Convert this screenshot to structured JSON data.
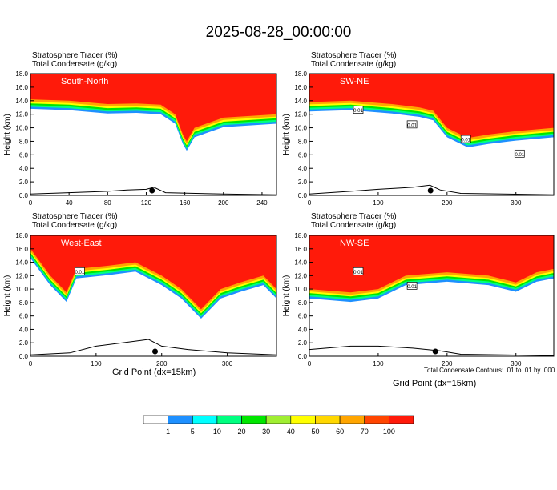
{
  "title": "2025-08-28_00:00:00",
  "subtitles": {
    "line1": "Stratosphere Tracer   (%)",
    "line2": "Total Condensate   (g/kg)"
  },
  "colors": {
    "white": "#ffffff",
    "red": "#ff1a0a"
  },
  "colorbar": {
    "ticks": [
      "1",
      "5",
      "10",
      "20",
      "30",
      "40",
      "50",
      "60",
      "70",
      "100"
    ],
    "colors": [
      "#ffffff",
      "#1e90ff",
      "#00ffff",
      "#00ff80",
      "#00e600",
      "#a0ee32",
      "#ffff00",
      "#ffd700",
      "#ffa500",
      "#ff4500",
      "#ff1a0a"
    ]
  },
  "footnote": "Total Condensate Contours: .01 to .01 by .000",
  "chart_data": [
    {
      "type": "heatmap",
      "title": "South-North",
      "ylabel": "Height (km)",
      "xlabel": "",
      "xlim": [
        0,
        255
      ],
      "ylim": [
        0,
        18
      ],
      "xticks": [
        "0",
        "40",
        "80",
        "120",
        "160",
        "200",
        "240"
      ],
      "xtick_values": [
        0,
        40,
        80,
        120,
        160,
        200,
        240
      ],
      "yticks": [
        "0.0",
        "2.0",
        "4.0",
        "6.0",
        "8.0",
        "10.0",
        "12.0",
        "14.0",
        "16.0",
        "18.0"
      ],
      "tropopause": [
        [
          0,
          14.2
        ],
        [
          40,
          14.0
        ],
        [
          80,
          13.5
        ],
        [
          110,
          13.6
        ],
        [
          135,
          13.4
        ],
        [
          150,
          12.0
        ],
        [
          158,
          9.0
        ],
        [
          162,
          8.0
        ],
        [
          170,
          10.0
        ],
        [
          200,
          11.5
        ],
        [
          255,
          12.0
        ]
      ],
      "terrain": [
        [
          0,
          0.2
        ],
        [
          40,
          0.4
        ],
        [
          80,
          0.6
        ],
        [
          100,
          0.8
        ],
        [
          120,
          0.9
        ],
        [
          128,
          1.2
        ],
        [
          140,
          0.4
        ],
        [
          200,
          0.2
        ],
        [
          255,
          0.1
        ]
      ],
      "marker_x": 126,
      "contour_labels": []
    },
    {
      "type": "heatmap",
      "title": "SW-NE",
      "ylabel": "Height (km)",
      "xlabel": "",
      "xlim": [
        0,
        355
      ],
      "ylim": [
        0,
        18
      ],
      "xticks": [
        "0",
        "100",
        "200",
        "300"
      ],
      "xtick_values": [
        0,
        100,
        200,
        300
      ],
      "yticks": [
        "0.0",
        "2.0",
        "4.0",
        "6.0",
        "8.0",
        "10.0",
        "12.0",
        "14.0",
        "16.0",
        "18.0"
      ],
      "tropopause": [
        [
          0,
          13.8
        ],
        [
          60,
          14.0
        ],
        [
          120,
          13.5
        ],
        [
          160,
          13.0
        ],
        [
          180,
          12.5
        ],
        [
          200,
          10.0
        ],
        [
          230,
          8.5
        ],
        [
          260,
          9.0
        ],
        [
          300,
          9.5
        ],
        [
          355,
          10.0
        ]
      ],
      "terrain": [
        [
          0,
          0.2
        ],
        [
          60,
          0.6
        ],
        [
          100,
          0.9
        ],
        [
          150,
          1.2
        ],
        [
          175,
          1.5
        ],
        [
          190,
          0.8
        ],
        [
          220,
          0.3
        ],
        [
          355,
          0.1
        ]
      ],
      "marker_x": 176,
      "contour_labels": [
        "0.01",
        "0.01",
        "0.01",
        "0.01"
      ]
    },
    {
      "type": "heatmap",
      "title": "West-East",
      "ylabel": "Height (km)",
      "xlabel": "Grid Point (dx=15km)",
      "xlim": [
        0,
        375
      ],
      "ylim": [
        0,
        18
      ],
      "xticks": [
        "0",
        "100",
        "200",
        "300"
      ],
      "xtick_values": [
        0,
        100,
        200,
        300
      ],
      "yticks": [
        "0.0",
        "2.0",
        "4.0",
        "6.0",
        "8.0",
        "10.0",
        "12.0",
        "14.0",
        "16.0",
        "18.0"
      ],
      "tropopause": [
        [
          0,
          16.0
        ],
        [
          30,
          12.0
        ],
        [
          55,
          9.5
        ],
        [
          70,
          13.0
        ],
        [
          120,
          13.5
        ],
        [
          160,
          14.0
        ],
        [
          200,
          12.0
        ],
        [
          230,
          10.0
        ],
        [
          260,
          7.0
        ],
        [
          290,
          10.0
        ],
        [
          320,
          11.0
        ],
        [
          355,
          12.0
        ],
        [
          375,
          10.0
        ]
      ],
      "terrain": [
        [
          0,
          0.2
        ],
        [
          60,
          0.5
        ],
        [
          100,
          1.5
        ],
        [
          140,
          2.0
        ],
        [
          180,
          2.5
        ],
        [
          200,
          1.5
        ],
        [
          240,
          1.0
        ],
        [
          300,
          0.5
        ],
        [
          375,
          0.2
        ]
      ],
      "marker_x": 190,
      "contour_labels": [
        "0.01"
      ]
    },
    {
      "type": "heatmap",
      "title": "NW-SE",
      "ylabel": "Height (km)",
      "xlabel": "Grid Point (dx=15km)",
      "xlim": [
        0,
        355
      ],
      "ylim": [
        0,
        18
      ],
      "xticks": [
        "0",
        "100",
        "200",
        "300"
      ],
      "xtick_values": [
        0,
        100,
        200,
        300
      ],
      "yticks": [
        "0.0",
        "2.0",
        "4.0",
        "6.0",
        "8.0",
        "10.0",
        "12.0",
        "14.0",
        "16.0",
        "18.0"
      ],
      "tropopause": [
        [
          0,
          10.0
        ],
        [
          60,
          9.5
        ],
        [
          100,
          10.0
        ],
        [
          140,
          12.0
        ],
        [
          200,
          12.5
        ],
        [
          260,
          12.0
        ],
        [
          300,
          11.0
        ],
        [
          330,
          12.5
        ],
        [
          355,
          13.0
        ]
      ],
      "terrain": [
        [
          0,
          1.0
        ],
        [
          60,
          1.5
        ],
        [
          100,
          1.5
        ],
        [
          150,
          1.2
        ],
        [
          190,
          0.8
        ],
        [
          220,
          0.3
        ],
        [
          355,
          0.1
        ]
      ],
      "marker_x": 183,
      "contour_labels": [
        "0.01",
        "0.01"
      ]
    }
  ]
}
